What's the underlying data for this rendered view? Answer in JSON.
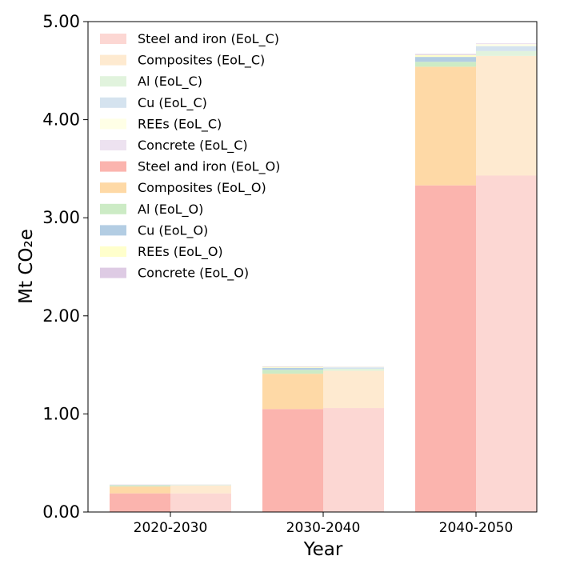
{
  "chart_data": {
    "type": "bar",
    "stacked": true,
    "grouped": true,
    "categories": [
      "2020-2030",
      "2030-2040",
      "2040-2050"
    ],
    "xlabel": "Year",
    "ylabel": "Mt CO₂e",
    "ylim": [
      0,
      5.0
    ],
    "yticks": [
      "0.00",
      "1.00",
      "2.00",
      "3.00",
      "4.00",
      "5.00"
    ],
    "grid": false,
    "legend_position": "upper-left",
    "groups": [
      {
        "name": "EoL_O",
        "position": "left",
        "series": [
          {
            "name": "Steel and iron (EoL_O)",
            "color": "#fbb4ae",
            "values": [
              0.19,
              1.05,
              3.33
            ]
          },
          {
            "name": "Composites (EoL_O)",
            "color": "#fed9a6",
            "values": [
              0.07,
              0.36,
              1.21
            ]
          },
          {
            "name": "Al (EoL_O)",
            "color": "#ccebc5",
            "values": [
              0.01,
              0.04,
              0.05
            ]
          },
          {
            "name": "Cu (EoL_O)",
            "color": "#b3cde3",
            "values": [
              0.005,
              0.02,
              0.05
            ]
          },
          {
            "name": "REEs (EoL_O)",
            "color": "#ffffcc",
            "values": [
              0.003,
              0.01,
              0.02
            ]
          },
          {
            "name": "Concrete (EoL_O)",
            "color": "#decbe4",
            "values": [
              0.002,
              0.005,
              0.01
            ]
          }
        ]
      },
      {
        "name": "EoL_C",
        "position": "right",
        "series": [
          {
            "name": "Steel and iron (EoL_C)",
            "color": "#fcd7d3",
            "values": [
              0.19,
              1.06,
              3.43
            ]
          },
          {
            "name": "Composites (EoL_C)",
            "color": "#feead0",
            "values": [
              0.08,
              0.38,
              1.22
            ]
          },
          {
            "name": "Al (EoL_C)",
            "color": "#e1f3dd",
            "values": [
              0.005,
              0.02,
              0.05
            ]
          },
          {
            "name": "Cu (EoL_C)",
            "color": "#d5e3ef",
            "values": [
              0.004,
              0.015,
              0.05
            ]
          },
          {
            "name": "REEs (EoL_C)",
            "color": "#ffffe6",
            "values": [
              0.002,
              0.005,
              0.02
            ]
          },
          {
            "name": "Concrete (EoL_C)",
            "color": "#ede2f0",
            "values": [
              0.002,
              0.004,
              0.01
            ]
          }
        ]
      }
    ],
    "legend_entries": [
      {
        "label": "Steel and iron (EoL_C)",
        "color": "#fcd7d3"
      },
      {
        "label": "Composites (EoL_C)",
        "color": "#feead0"
      },
      {
        "label": "Al (EoL_C)",
        "color": "#e1f3dd"
      },
      {
        "label": "Cu (EoL_C)",
        "color": "#d5e3ef"
      },
      {
        "label": "REEs (EoL_C)",
        "color": "#ffffe6"
      },
      {
        "label": "Concrete (EoL_C)",
        "color": "#ede2f0"
      },
      {
        "label": "Steel and iron (EoL_O)",
        "color": "#fbb4ae"
      },
      {
        "label": "Composites (EoL_O)",
        "color": "#fed9a6"
      },
      {
        "label": "Al (EoL_O)",
        "color": "#ccebc5"
      },
      {
        "label": "Cu (EoL_O)",
        "color": "#b3cde3"
      },
      {
        "label": "REEs (EoL_O)",
        "color": "#ffffcc"
      },
      {
        "label": "Concrete (EoL_O)",
        "color": "#decbe4"
      }
    ]
  }
}
